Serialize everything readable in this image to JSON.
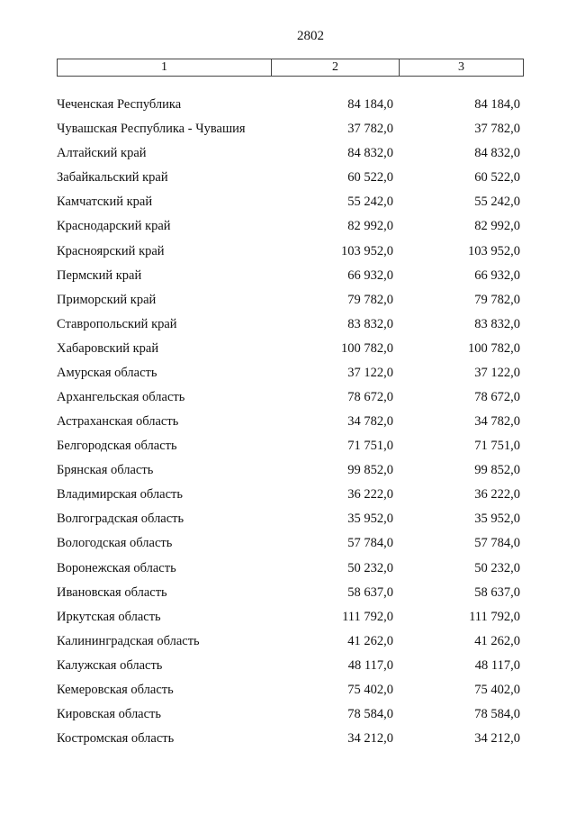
{
  "page_number": "2802",
  "header": [
    "1",
    "2",
    "3"
  ],
  "rows": [
    [
      "Чеченская Республика",
      "84 184,0",
      "84 184,0"
    ],
    [
      "Чувашская Республика - Чувашия",
      "37 782,0",
      "37 782,0"
    ],
    [
      "Алтайский край",
      "84 832,0",
      "84 832,0"
    ],
    [
      "Забайкальский край",
      "60 522,0",
      "60 522,0"
    ],
    [
      "Камчатский край",
      "55 242,0",
      "55 242,0"
    ],
    [
      "Краснодарский край",
      "82 992,0",
      "82 992,0"
    ],
    [
      "Красноярский край",
      "103 952,0",
      "103 952,0"
    ],
    [
      "Пермский край",
      "66 932,0",
      "66 932,0"
    ],
    [
      "Приморский край",
      "79 782,0",
      "79 782,0"
    ],
    [
      "Ставропольский край",
      "83 832,0",
      "83 832,0"
    ],
    [
      "Хабаровский край",
      "100 782,0",
      "100 782,0"
    ],
    [
      "Амурская область",
      "37 122,0",
      "37 122,0"
    ],
    [
      "Архангельская область",
      "78 672,0",
      "78 672,0"
    ],
    [
      "Астраханская область",
      "34 782,0",
      "34 782,0"
    ],
    [
      "Белгородская область",
      "71 751,0",
      "71 751,0"
    ],
    [
      "Брянская область",
      "99 852,0",
      "99 852,0"
    ],
    [
      "Владимирская область",
      "36 222,0",
      "36 222,0"
    ],
    [
      "Волгоградская область",
      "35 952,0",
      "35 952,0"
    ],
    [
      "Вологодская область",
      "57 784,0",
      "57 784,0"
    ],
    [
      "Воронежская область",
      "50 232,0",
      "50 232,0"
    ],
    [
      "Ивановская область",
      "58 637,0",
      "58 637,0"
    ],
    [
      "Иркутская область",
      "111 792,0",
      "111 792,0"
    ],
    [
      "Калининградская область",
      "41 262,0",
      "41 262,0"
    ],
    [
      "Калужская область",
      "48 117,0",
      "48 117,0"
    ],
    [
      "Кемеровская область",
      "75 402,0",
      "75 402,0"
    ],
    [
      "Кировская область",
      "78 584,0",
      "78 584,0"
    ],
    [
      "Костромская область",
      "34 212,0",
      "34 212,0"
    ]
  ]
}
